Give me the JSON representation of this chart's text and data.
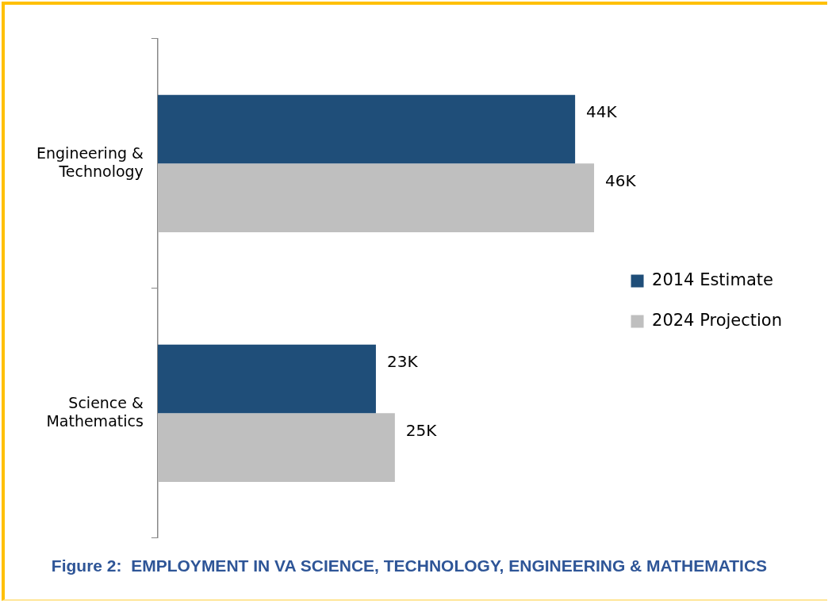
{
  "chart_data": {
    "type": "bar",
    "orientation": "horizontal",
    "title": "Figure 2:  EMPLOYMENT IN VA SCIENCE, TECHNOLOGY, ENGINEERING & MATHEMATICS",
    "categories": [
      "Engineering & Technology",
      "Science & Mathematics"
    ],
    "series": [
      {
        "name": "2014 Estimate",
        "color": "#1f4e79",
        "values": [
          44,
          23
        ],
        "value_labels": [
          "44K",
          "23K"
        ]
      },
      {
        "name": "2024 Projection",
        "color": "#bfbfbf",
        "values": [
          46,
          25
        ],
        "value_labels": [
          "46K",
          "25K"
        ]
      }
    ],
    "grid": false,
    "legend": "right"
  }
}
